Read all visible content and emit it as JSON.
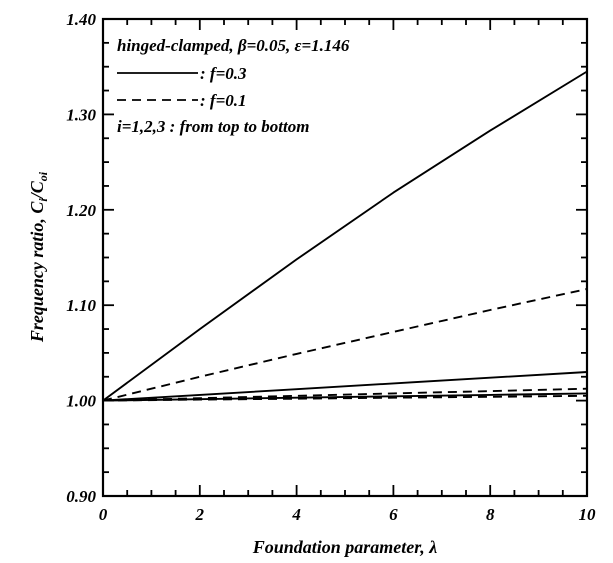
{
  "chart_data": {
    "type": "line",
    "xlabel": "Foundation parameter, λ",
    "ylabel": "Frequency ratio, C",
    "ylabel_sub": "i",
    "ylabel_sep": "/C",
    "ylabel_sub2": "oi",
    "xlim": [
      0,
      10
    ],
    "ylim": [
      0.9,
      1.4
    ],
    "x_ticks": [
      0,
      2,
      4,
      6,
      8,
      10
    ],
    "y_ticks": [
      0.9,
      1.0,
      1.1,
      1.2,
      1.3,
      1.4
    ],
    "x_tick_labels": [
      "0",
      "2",
      "4",
      "6",
      "8",
      "10"
    ],
    "y_tick_labels": [
      "0.90",
      "1.00",
      "1.10",
      "1.20",
      "1.30",
      "1.40"
    ],
    "legend": {
      "placement": "top-left",
      "header": "hinged-clamped, β=0.05, ε=1.146",
      "entries": [
        {
          "label": ": f=0.3",
          "style": "solid"
        },
        {
          "label": ": f=0.1",
          "style": "dashed"
        }
      ],
      "note": "i=1,2,3 : from top to bottom"
    },
    "series": [
      {
        "style": "solid",
        "x": [
          0,
          2,
          4,
          6,
          8,
          10
        ],
        "y": [
          1.0,
          1.075,
          1.148,
          1.218,
          1.283,
          1.345
        ]
      },
      {
        "style": "dashed",
        "x": [
          0,
          2,
          4,
          6,
          8,
          10
        ],
        "y": [
          1.0,
          1.025,
          1.049,
          1.072,
          1.095,
          1.117
        ]
      },
      {
        "style": "solid",
        "x": [
          0,
          2,
          4,
          6,
          8,
          10
        ],
        "y": [
          1.0,
          1.006,
          1.012,
          1.018,
          1.024,
          1.03
        ]
      },
      {
        "style": "dashed",
        "x": [
          0,
          2,
          4,
          6,
          8,
          10
        ],
        "y": [
          1.0,
          1.0025,
          1.005,
          1.0075,
          1.01,
          1.0125
        ]
      },
      {
        "style": "solid",
        "x": [
          0,
          2,
          4,
          6,
          8,
          10
        ],
        "y": [
          1.0,
          1.0015,
          1.003,
          1.0045,
          1.006,
          1.0075
        ]
      },
      {
        "style": "dashed",
        "x": [
          0,
          2,
          4,
          6,
          8,
          10
        ],
        "y": [
          1.0,
          1.001,
          1.002,
          1.003,
          1.004,
          1.005
        ]
      }
    ]
  }
}
